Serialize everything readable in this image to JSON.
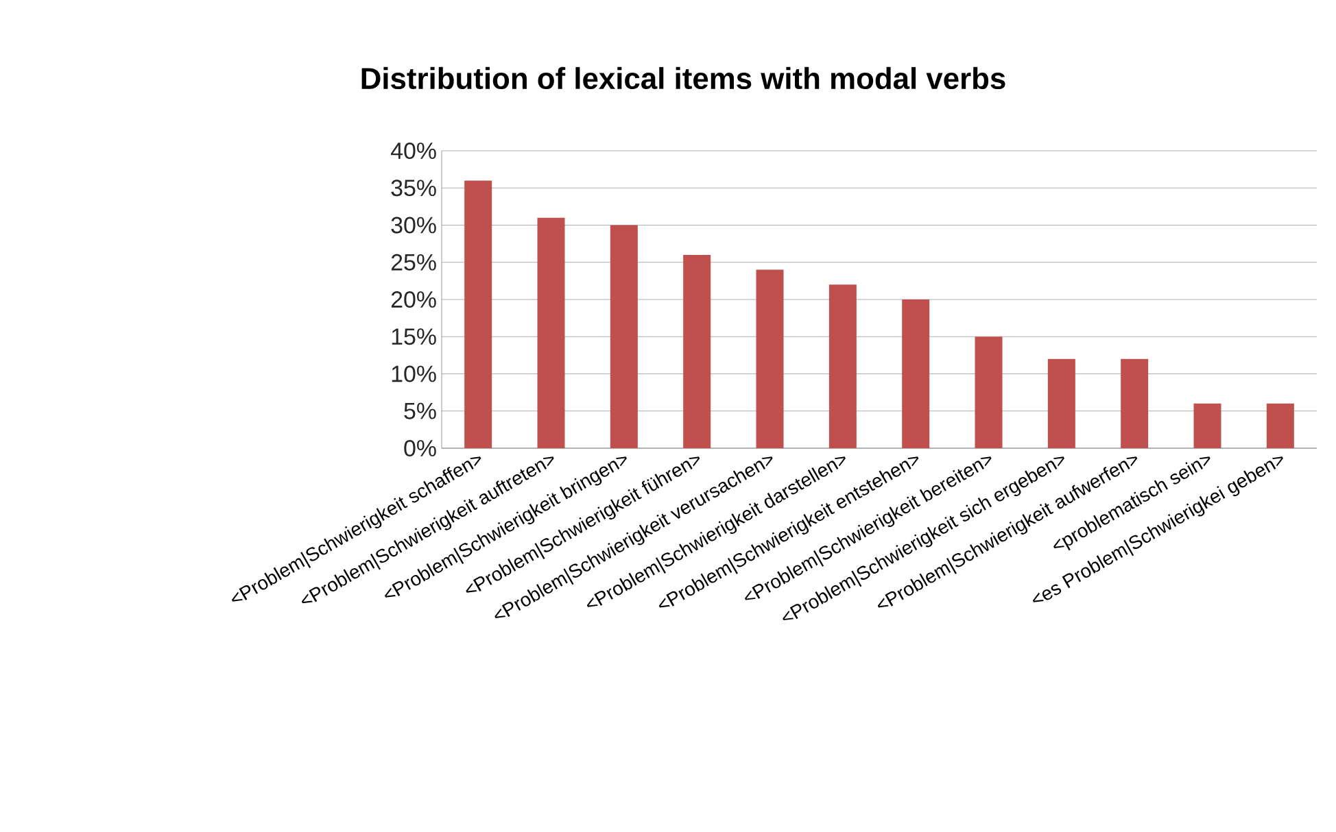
{
  "chart_data": {
    "type": "bar",
    "title": "Distribution of lexical items with modal verbs",
    "categories": [
      "<Problem|Schwierigkeit schaffen>",
      "<Problem|Schwierigkeit auftreten>",
      "<Problem|Schwierigkeit bringen>",
      "<Problem|Schwierigkeit führen>",
      "<Problem|Schwierigkeit verursachen>",
      "<Problem|Schwierigkeit darstellen>",
      "<Problem|Schwierigkeit entstehen>",
      "<Problem|Schwierigkeit bereiten>",
      "<Problem|Schwierigkeit sich ergeben>",
      "<Problem|Schwierigkeit aufwerfen>",
      "<problematisch sein>",
      "<es Problem|Schwierigkei geben>"
    ],
    "values": [
      36,
      31,
      30,
      26,
      24,
      22,
      20,
      15,
      12,
      12,
      6,
      6
    ],
    "color": "#c0504d",
    "ylim": [
      0,
      40
    ],
    "yticks": [
      {
        "value": 0,
        "label": "0%"
      },
      {
        "value": 5,
        "label": "5%"
      },
      {
        "value": 10,
        "label": "10%"
      },
      {
        "value": 15,
        "label": "15%"
      },
      {
        "value": 20,
        "label": "20%"
      },
      {
        "value": 25,
        "label": "25%"
      },
      {
        "value": 30,
        "label": "30%"
      },
      {
        "value": 35,
        "label": "35%"
      },
      {
        "value": 40,
        "label": "40%"
      }
    ],
    "grid": "y"
  }
}
